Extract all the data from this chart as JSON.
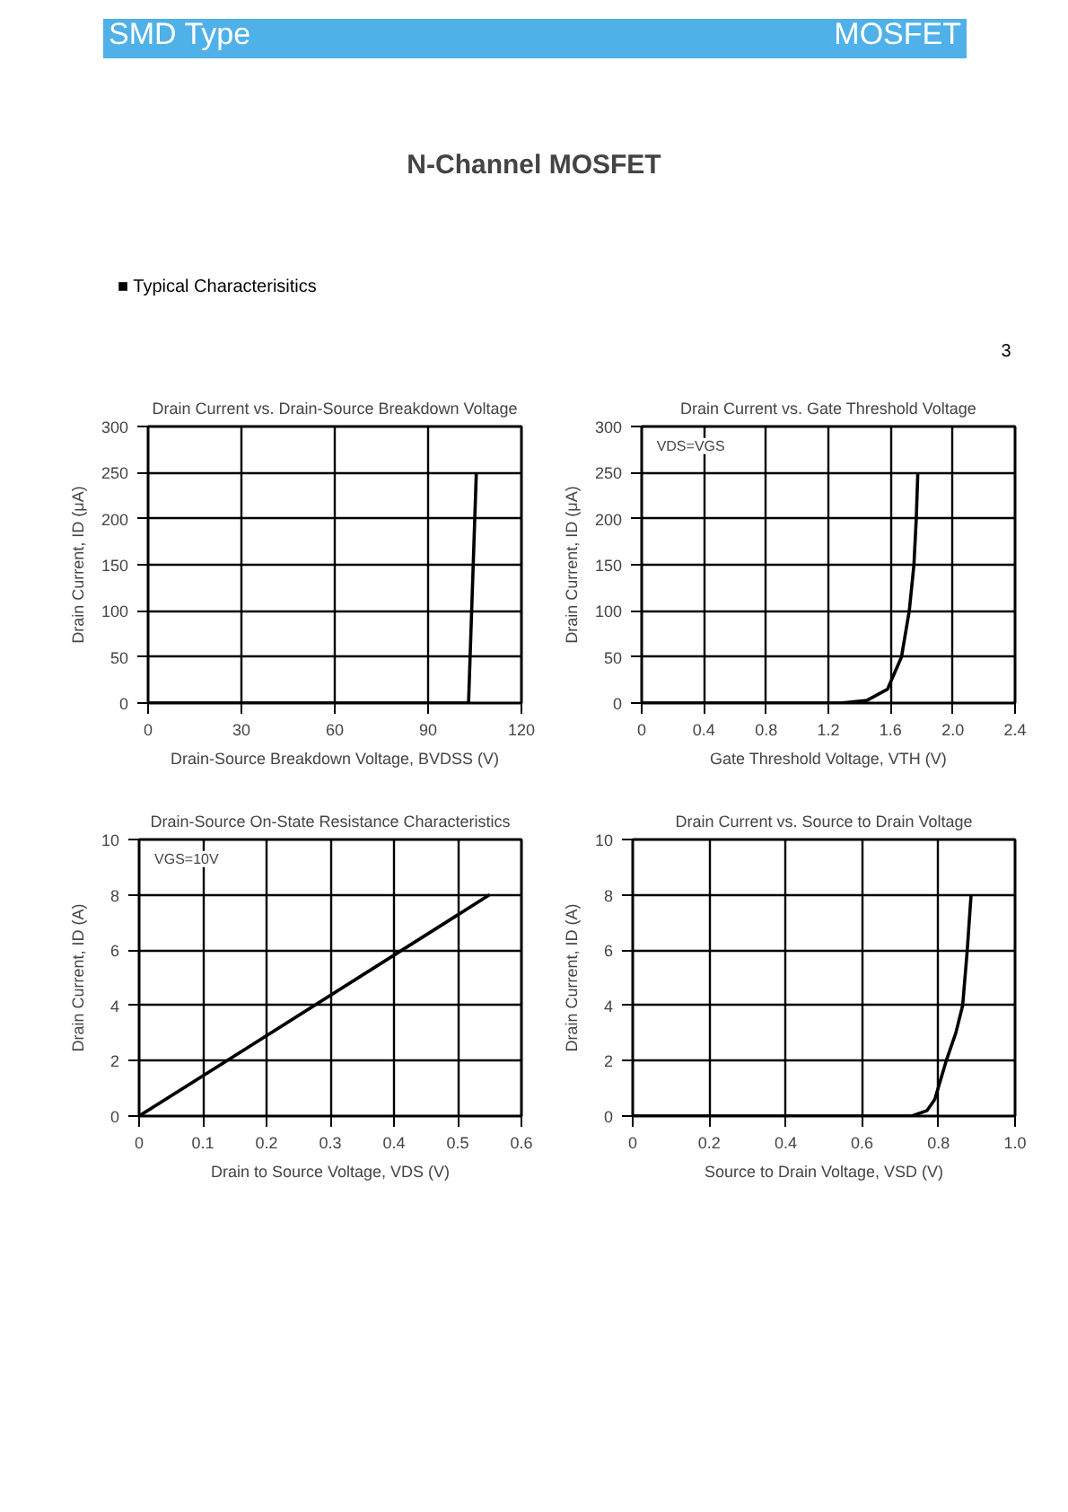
{
  "chart_data": [
    {
      "type": "other",
      "title": "N-Channel MOSFET",
      "annotations": [
        "SMD Type",
        "MOSFET",
        "■ Typical  Characterisitics",
        "3"
      ]
    },
    {
      "type": "line",
      "title": "Drain Current vs. Drain-Source Breakdown Voltage",
      "xlabel": "Drain-Source Breakdown Voltage, BVDSS (V)",
      "ylabel": "Drain Current, ID (μA)",
      "x": [
        0,
        103,
        105.5
      ],
      "series": [
        {
          "color": "#000000",
          "values": [
            0,
            0,
            250
          ]
        }
      ],
      "xlim": [
        0,
        120
      ],
      "xticks": [
        0,
        30,
        60,
        90,
        120
      ],
      "ylim": [
        0,
        300
      ],
      "yticks": [
        0,
        50,
        100,
        150,
        200,
        250,
        300
      ],
      "grid": true
    },
    {
      "type": "line",
      "title": "Drain Current vs. Gate Threshold Voltage",
      "xlabel": "Gate Threshold Voltage, VTH (V)",
      "ylabel": "Drain Current, ID (μA)",
      "annotations": [
        "VDS=VGS"
      ],
      "x": [
        0,
        1.28,
        1.45,
        1.58,
        1.67,
        1.72,
        1.75,
        1.765,
        1.775
      ],
      "series": [
        {
          "color": "#000000",
          "values": [
            0,
            0,
            3,
            15,
            50,
            100,
            150,
            200,
            250
          ]
        }
      ],
      "xlim": [
        0,
        2.4
      ],
      "xticks": [
        0,
        0.4,
        0.8,
        1.2,
        1.6,
        {
          "value": 2,
          "label": "2.0"
        },
        2.4
      ],
      "ylim": [
        0,
        300
      ],
      "yticks": [
        0,
        50,
        100,
        150,
        200,
        250,
        300
      ],
      "grid": true
    },
    {
      "type": "line",
      "title": "Drain-Source On-State Resistance Characteristics",
      "xlabel": "Drain to Source Voltage, VDS (V)",
      "ylabel": "Drain Current, ID (A)",
      "annotations": [
        "VGS=10V"
      ],
      "x": [
        0,
        0.55
      ],
      "series": [
        {
          "color": "#000000",
          "values": [
            0,
            8
          ]
        }
      ],
      "xlim": [
        0,
        0.6
      ],
      "xticks": [
        0,
        0.1,
        0.2,
        0.3,
        0.4,
        0.5,
        0.6
      ],
      "ylim": [
        0,
        10
      ],
      "yticks": [
        0,
        2,
        4,
        6,
        8,
        10
      ],
      "grid": true
    },
    {
      "type": "line",
      "title": "Drain Current vs. Source to Drain Voltage",
      "xlabel": "Source to Drain Voltage, VSD (V)",
      "ylabel": "Drain Current, ID (A)",
      "x": [
        0,
        0.73,
        0.77,
        0.79,
        0.82,
        0.845,
        0.863,
        0.875,
        0.885
      ],
      "series": [
        {
          "color": "#000000",
          "values": [
            0,
            0,
            0.2,
            0.6,
            2,
            3,
            4,
            6,
            8
          ]
        }
      ],
      "xlim": [
        0,
        1.0
      ],
      "xticks": [
        0,
        0.2,
        0.4,
        0.6,
        0.8,
        {
          "value": 1,
          "label": "1.0"
        }
      ],
      "ylim": [
        0,
        10
      ],
      "yticks": [
        0,
        2,
        4,
        6,
        8,
        10
      ],
      "grid": true
    }
  ]
}
